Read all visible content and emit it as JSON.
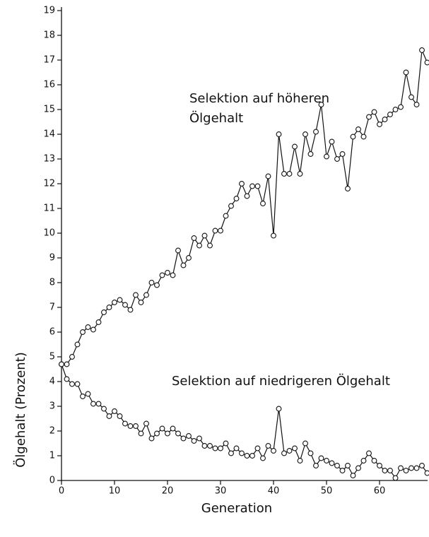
{
  "chart_data": {
    "type": "line",
    "x_label": "Generation",
    "y_label": "Ölgehalt (Prozent)",
    "annotations": [
      "Selektion auf höheren",
      "Ölgehalt",
      "Selektion auf niedrigeren Ölgehalt"
    ],
    "x": [
      0,
      1,
      2,
      3,
      4,
      5,
      6,
      7,
      8,
      9,
      10,
      11,
      12,
      13,
      14,
      15,
      16,
      17,
      18,
      19,
      20,
      21,
      22,
      23,
      24,
      25,
      26,
      27,
      28,
      29,
      30,
      31,
      32,
      33,
      34,
      35,
      36,
      37,
      38,
      39,
      40,
      41,
      42,
      43,
      44,
      45,
      46,
      47,
      48,
      49,
      50,
      51,
      52,
      53,
      54,
      55,
      56,
      57,
      58,
      59,
      60,
      61,
      62,
      63,
      64,
      65,
      66,
      67,
      68,
      69
    ],
    "series": [
      {
        "color": "#111111",
        "values": [
          4.7,
          4.7,
          5.0,
          5.5,
          6.0,
          6.2,
          6.1,
          6.4,
          6.8,
          7.0,
          7.2,
          7.3,
          7.1,
          6.9,
          7.5,
          7.2,
          7.5,
          8.0,
          7.9,
          8.3,
          8.4,
          8.3,
          9.3,
          8.7,
          9.0,
          9.8,
          9.5,
          9.9,
          9.5,
          10.1,
          10.1,
          10.7,
          11.1,
          11.4,
          12.0,
          11.5,
          11.9,
          11.9,
          11.2,
          12.3,
          9.9,
          14.0,
          12.4,
          12.4,
          13.5,
          12.4,
          14.0,
          13.2,
          14.1,
          15.2,
          13.1,
          13.7,
          13.0,
          13.2,
          11.8,
          13.9,
          14.2,
          13.9,
          14.7,
          14.9,
          14.4,
          14.6,
          14.8,
          15.0,
          15.1,
          16.5,
          15.5,
          15.2,
          17.4,
          16.9
        ]
      },
      {
        "color": "#111111",
        "values": [
          4.7,
          4.1,
          3.9,
          3.9,
          3.4,
          3.5,
          3.1,
          3.1,
          2.9,
          2.6,
          2.8,
          2.6,
          2.3,
          2.2,
          2.2,
          1.9,
          2.3,
          1.7,
          1.9,
          2.1,
          1.9,
          2.1,
          1.9,
          1.7,
          1.8,
          1.6,
          1.7,
          1.4,
          1.4,
          1.3,
          1.3,
          1.5,
          1.1,
          1.3,
          1.1,
          1.0,
          1.0,
          1.3,
          0.9,
          1.4,
          1.2,
          2.9,
          1.1,
          1.2,
          1.3,
          0.8,
          1.5,
          1.1,
          0.6,
          0.9,
          0.8,
          0.7,
          0.6,
          0.4,
          0.6,
          0.2,
          0.5,
          0.8,
          1.1,
          0.8,
          0.6,
          0.4,
          0.4,
          0.1,
          0.5,
          0.4,
          0.5,
          0.5,
          0.6,
          0.3
        ]
      }
    ],
    "xlim": [
      0,
      69
    ],
    "ylim": [
      0,
      19
    ],
    "xticks": [
      0,
      10,
      20,
      30,
      40,
      50,
      60
    ],
    "yticks": [
      0,
      1,
      2,
      3,
      4,
      5,
      6,
      7,
      8,
      9,
      10,
      11,
      12,
      13,
      14,
      15,
      16,
      17,
      18,
      19
    ],
    "marker": "circle"
  }
}
